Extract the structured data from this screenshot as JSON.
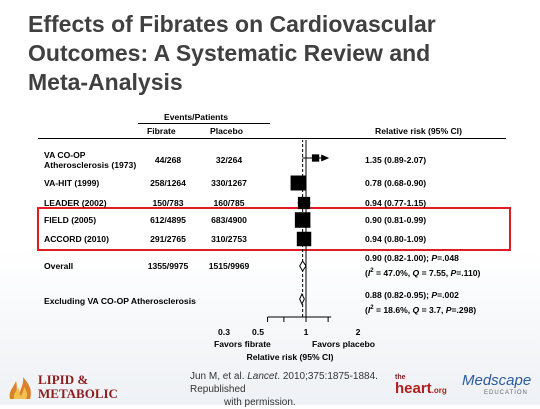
{
  "title": {
    "line1": "Effects of Fibrates on Cardiovascular",
    "line2": "Outcomes: A Systematic Review and",
    "line3": "Meta-Analysis"
  },
  "table_header": {
    "group": "Events/Patients",
    "fibrate": "Fibrate",
    "placebo": "Placebo",
    "rr": "Relative risk (95% CI)"
  },
  "studies": [
    {
      "name_line1": "VA CO-OP",
      "name_line2": "Atherosclerosis (1973)",
      "fibrate": "44/268",
      "placebo": "32/264",
      "rr_text": "1.35 (0.89-2.07)",
      "rr_text2": ""
    },
    {
      "name_line1": "VA-HIT (1999)",
      "name_line2": "",
      "fibrate": "258/1264",
      "placebo": "330/1267",
      "rr_text": "0.78 (0.68-0.90)",
      "rr_text2": ""
    },
    {
      "name_line1": "LEADER (2002)",
      "name_line2": "",
      "fibrate": "150/783",
      "placebo": "160/785",
      "rr_text": "0.94 (0.77-1.15)",
      "rr_text2": ""
    },
    {
      "name_line1": "FIELD (2005)",
      "name_line2": "",
      "fibrate": "612/4895",
      "placebo": "683/4900",
      "rr_text": "0.90 (0.81-0.99)",
      "rr_text2": ""
    },
    {
      "name_line1": "ACCORD (2010)",
      "name_line2": "",
      "fibrate": "291/2765",
      "placebo": "310/2753",
      "rr_text": "0.94 (0.80-1.09)",
      "rr_text2": ""
    },
    {
      "name_line1": "Overall",
      "name_line2": "",
      "fibrate": "1355/9975",
      "placebo": "1515/9969",
      "rr_text": "0.90 (0.82-1.00); P=.048",
      "rr_text2": "(I2 = 47.0%, Q = 7.55, P=.110)"
    },
    {
      "name_line1": "Excluding VA CO-OP Atherosclerosis",
      "name_line2": "",
      "fibrate": "",
      "placebo": "",
      "rr_text": "0.88 (0.82-0.95); P=.002",
      "rr_text2": "(I2 = 18.6%, Q = 3.7, P=.298)"
    }
  ],
  "axis": {
    "ticks": [
      "0.3",
      "0.5",
      "1",
      "2"
    ],
    "favors_left": "Favors fibrate",
    "favors_right": "Favors placebo",
    "title": "Relative risk (95% CI)"
  },
  "chart_data": {
    "type": "forest",
    "x_scale": "log",
    "reference_line": 1,
    "xlim": [
      0.3,
      2.2
    ],
    "x_ticks": [
      0.3,
      0.5,
      1,
      2
    ],
    "xlabel": "Relative risk (95% CI)",
    "points": [
      {
        "label": "VA CO-OP Atherosclerosis (1973)",
        "rr": 1.35,
        "lo": 0.89,
        "hi": 2.07,
        "kind": "study",
        "weight": 0.3
      },
      {
        "label": "VA-HIT (1999)",
        "rr": 0.78,
        "lo": 0.68,
        "hi": 0.9,
        "kind": "study",
        "weight": 1.0
      },
      {
        "label": "LEADER (2002)",
        "rr": 0.94,
        "lo": 0.77,
        "hi": 1.15,
        "kind": "study",
        "weight": 0.75
      },
      {
        "label": "FIELD (2005)",
        "rr": 0.9,
        "lo": 0.81,
        "hi": 0.99,
        "kind": "study",
        "weight": 1.05
      },
      {
        "label": "ACCORD (2010)",
        "rr": 0.94,
        "lo": 0.8,
        "hi": 1.09,
        "kind": "study",
        "weight": 0.95
      },
      {
        "label": "Overall",
        "rr": 0.9,
        "lo": 0.82,
        "hi": 1.0,
        "kind": "summary"
      },
      {
        "label": "Excluding VA CO-OP Atherosclerosis",
        "rr": 0.88,
        "lo": 0.82,
        "hi": 0.95,
        "kind": "summary"
      }
    ],
    "highlighted": [
      "FIELD (2005)",
      "ACCORD (2010)"
    ]
  },
  "citation": {
    "line1": "Jun M, et al. Lancet. 2010;375:1875-1884. Republished",
    "line2": "with permission."
  },
  "logos": {
    "lipid_line1": "LIPID &",
    "lipid_line2": "METABOLIC",
    "the": "the",
    "heart": "heart",
    "org": ".org",
    "medscape": "Medscape",
    "education": "EDUCATION"
  },
  "colors": {
    "title": "#404040",
    "highlight": "#e31b23",
    "lipid_brand": "#8b1e1e",
    "medscape_brand": "#2b5a9b"
  }
}
